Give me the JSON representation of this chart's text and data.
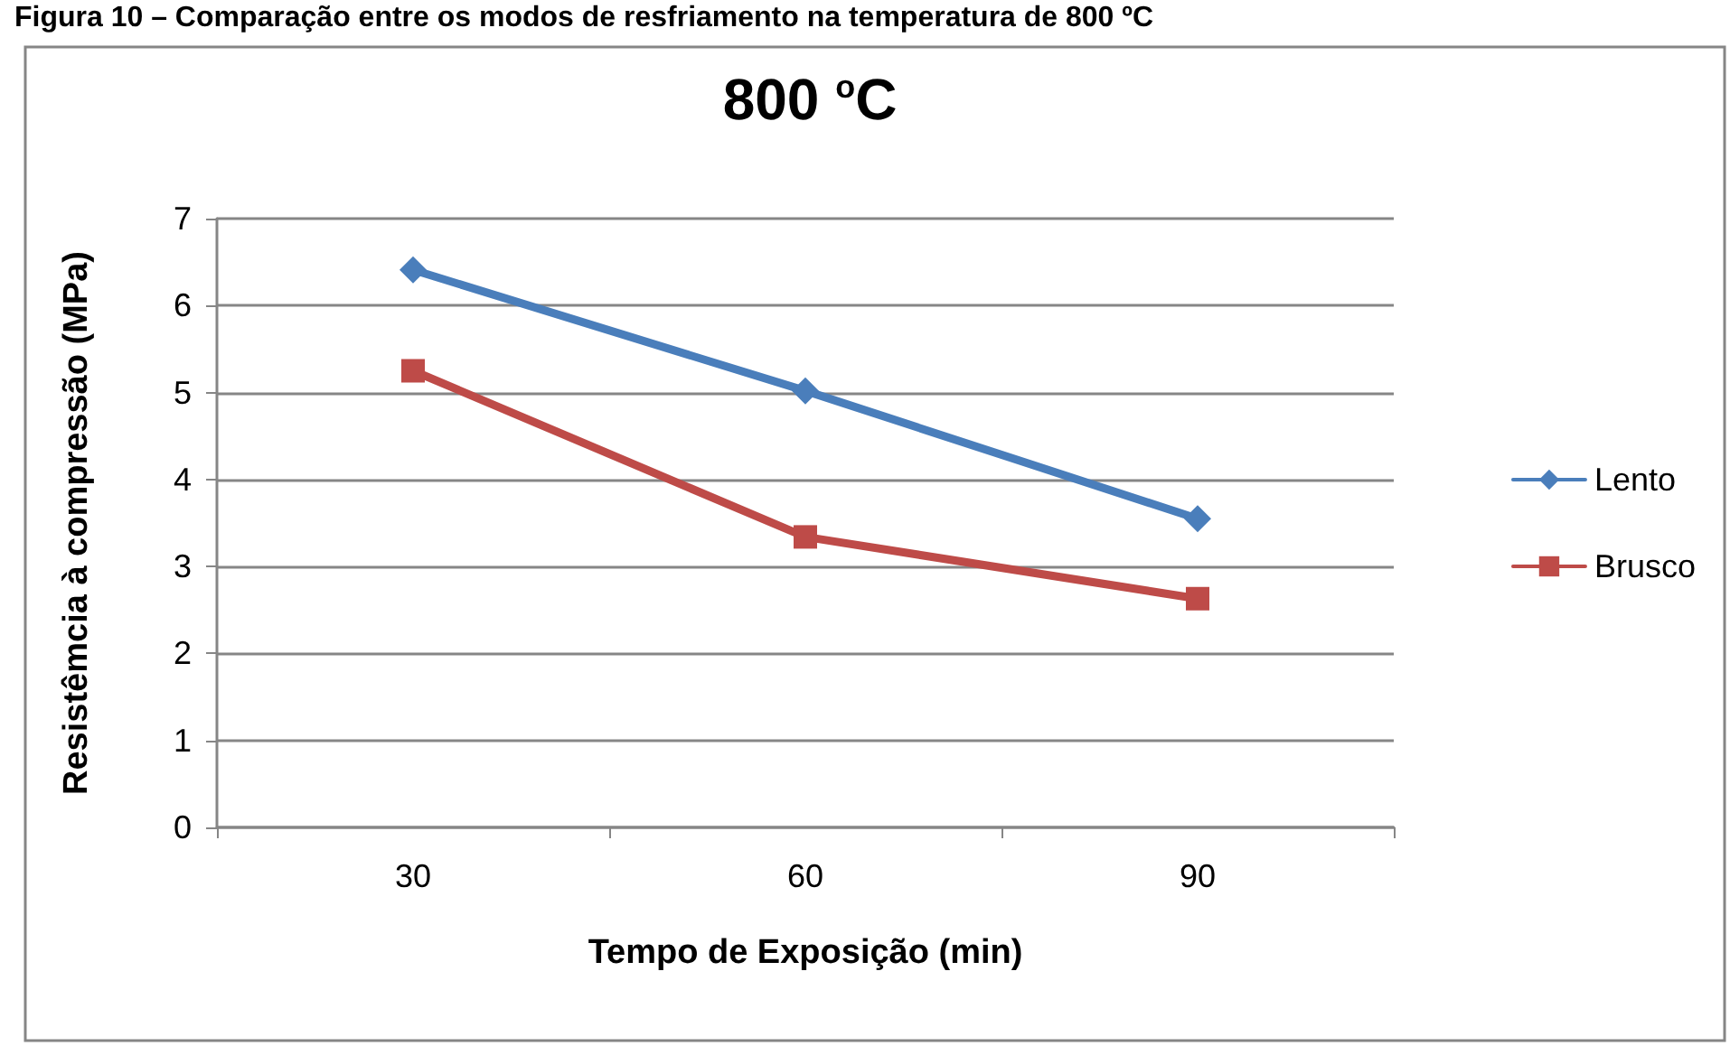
{
  "chart_data": {
    "type": "line",
    "title": "800 $^{o}$C",
    "xlabel": "Tempo de Exposição (min)",
    "ylabel": "Resistêmcia à compressão (MPa)",
    "annotations": [
      "Figura 10 – Comparação entre os modos de resfriamento na temperatura de 800 ºC"
    ],
    "categories": [
      "30",
      "60",
      "90"
    ],
    "series": [
      {
        "name": "Lento",
        "color": "#4a7ebb",
        "values": [
          6.41,
          5.02,
          3.55
        ],
        "marker": "diamond"
      },
      {
        "name": "Brusco",
        "color": "#be4b48",
        "values": [
          5.25,
          3.34,
          2.63
        ],
        "marker": "square"
      }
    ],
    "ylim": [
      0,
      7
    ],
    "yticks": [
      0,
      1,
      2,
      3,
      4,
      5,
      6,
      7
    ],
    "grid": "y",
    "legend": "right",
    "line_style": "solid"
  }
}
